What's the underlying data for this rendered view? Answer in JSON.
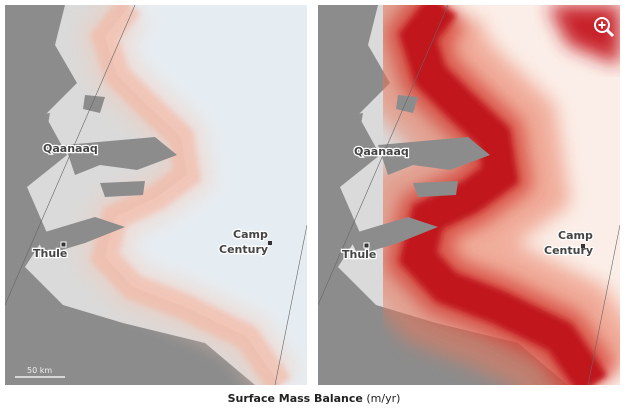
{
  "panels": [
    {
      "places": [
        {
          "lines": [
            "Qaanaaq"
          ]
        },
        {
          "lines": [
            "Thule"
          ]
        },
        {
          "lines": [
            "Camp",
            "Century"
          ]
        }
      ],
      "scale_bar": "50 km"
    },
    {
      "places": [
        {
          "lines": [
            "Qaanaaq"
          ]
        },
        {
          "lines": [
            "Thule"
          ]
        },
        {
          "lines": [
            "Camp",
            "Century"
          ]
        }
      ]
    }
  ],
  "caption": {
    "title": "Surface Mass Balance",
    "units": "(m/yr)"
  }
}
